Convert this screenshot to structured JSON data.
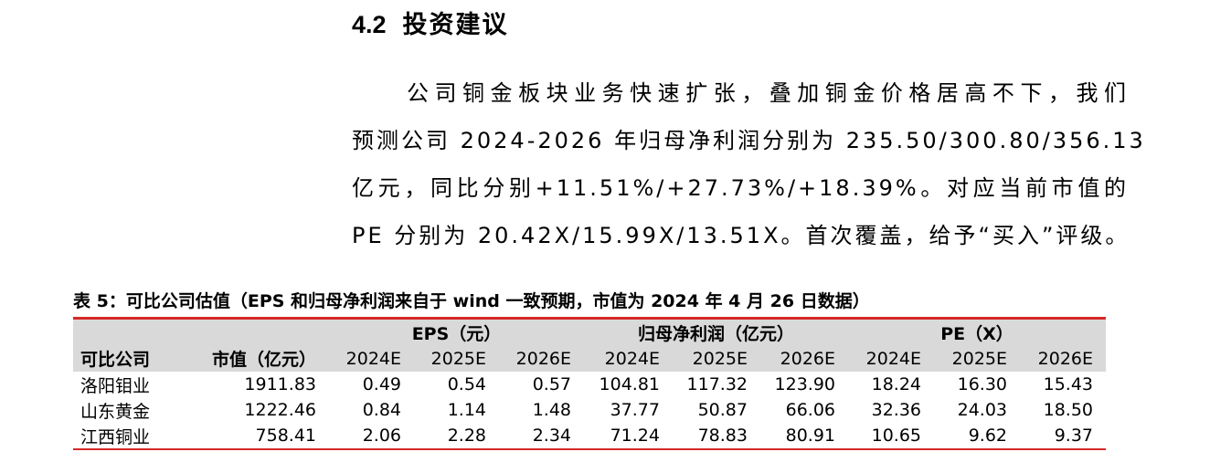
{
  "section": {
    "number": "4.2",
    "title": "投资建议"
  },
  "paragraph": {
    "lines": [
      "公司铜金板块业务快速扩张，叠加铜金价格居高不下，我们",
      "预测公司 2024-2026 年归母净利润分别为 235.50/300.80/356.13",
      "亿元，同比分别+11.51%/+27.73%/+18.39%。对应当前市值的",
      "PE 分别为 20.42X/15.99X/13.51X。首次覆盖，给予“买入”评级。"
    ]
  },
  "table": {
    "title": "表 5：可比公司估值（EPS 和归母净利润来自于 wind 一致预期，市值为 2024 年 4 月 26 日数据）",
    "group_headers": {
      "eps": "EPS（元）",
      "profit": "归母净利润（亿元）",
      "pe": "PE（X）"
    },
    "col_headers": [
      "可比公司",
      "市值（亿元）",
      "2024E",
      "2025E",
      "2026E",
      "2024E",
      "2025E",
      "2026E",
      "2024E",
      "2025E",
      "2026E"
    ],
    "rows": [
      [
        "洛阳钼业",
        "1911.83",
        "0.49",
        "0.54",
        "0.57",
        "104.81",
        "117.32",
        "123.90",
        "18.24",
        "16.30",
        "15.43"
      ],
      [
        "山东黄金",
        "1222.46",
        "0.84",
        "1.14",
        "1.48",
        "37.77",
        "50.87",
        "66.06",
        "32.36",
        "24.03",
        "18.50"
      ],
      [
        "江西铜业",
        "758.41",
        "2.06",
        "2.28",
        "2.34",
        "71.24",
        "78.83",
        "80.91",
        "10.65",
        "9.62",
        "9.37"
      ]
    ]
  },
  "colors": {
    "rule": "#d62b27",
    "header_bg": "#d9d9d9"
  }
}
